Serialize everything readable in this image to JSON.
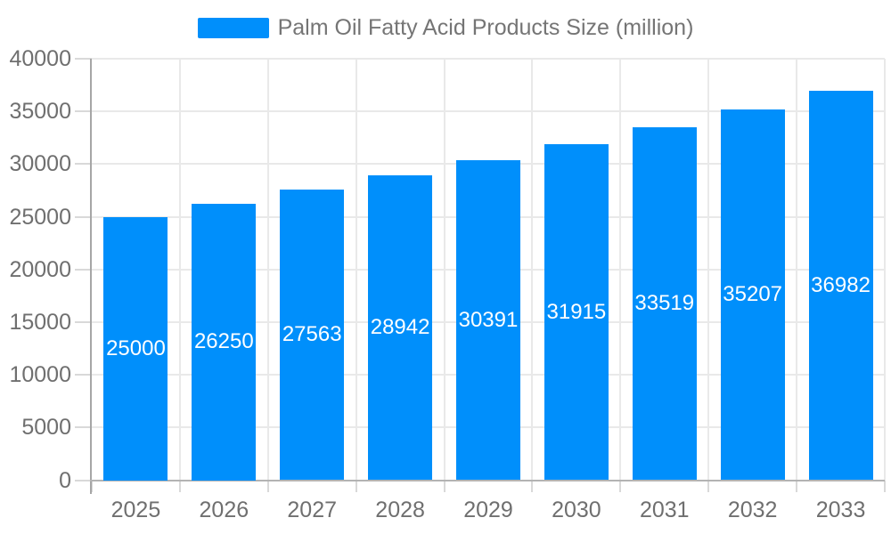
{
  "chart_data": {
    "type": "bar",
    "title": "Palm Oil Fatty Acid Products Size (million)",
    "series": [
      {
        "name": "Palm Oil Fatty Acid Products Size (million)",
        "values": [
          25000,
          26250,
          27563,
          28942,
          30391,
          31915,
          33519,
          35207,
          36982
        ]
      }
    ],
    "categories": [
      "2025",
      "2026",
      "2027",
      "2028",
      "2029",
      "2030",
      "2031",
      "2032",
      "2033"
    ],
    "value_labels": [
      "25000",
      "26250",
      "27563",
      "28942",
      "30391",
      "31915",
      "33519",
      "35207",
      "36982"
    ],
    "xlabel": "",
    "ylabel": "",
    "ylim": [
      0,
      40000
    ],
    "ytick_step": 5000,
    "ytick_labels": [
      "0",
      "5000",
      "10000",
      "15000",
      "20000",
      "25000",
      "30000",
      "35000",
      "40000"
    ],
    "grid": true,
    "legend_position": "top",
    "colors": {
      "bar": "#008FFB",
      "axis_label": "#6f6f6f",
      "legend_text": "#757575",
      "bar_label": "#ffffff",
      "gridline": "#e9e9e9",
      "y_axis_line": "#a6a6a6",
      "x_axis_line": "#b3b3b3"
    }
  }
}
